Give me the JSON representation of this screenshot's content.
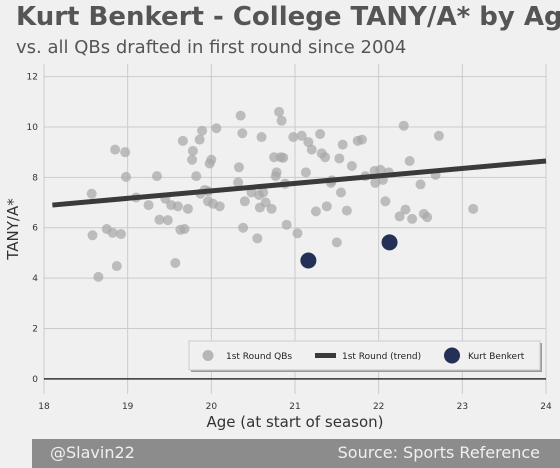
{
  "title": "Kurt Benkert - College TANY/A* by Age",
  "subtitle": "vs. all QBs drafted in first round since 2004",
  "footer": {
    "left": "@Slavin22",
    "right": "Source: Sports Reference"
  },
  "colors": {
    "background": "#f0f0f0",
    "grid": "#cbcbcb",
    "scatter": "#a8a8a8",
    "trend": "#3a3a3a",
    "highlight": "#243056",
    "footer": "#8c8c8c"
  },
  "chart_data": {
    "type": "scatter",
    "xlabel": "Age (at start of season)",
    "ylabel": "TANY/A*",
    "xlim": [
      18,
      24
    ],
    "ylim": [
      -0.6,
      12.5
    ],
    "xticks": [
      18,
      19,
      20,
      21,
      22,
      23,
      24
    ],
    "yticks": [
      0,
      2,
      4,
      6,
      8,
      10,
      12
    ],
    "grid": true,
    "legend": {
      "placement": "lower-right",
      "entries": [
        "1st Round QBs",
        "1st Round (trend)",
        "Kurt Benkert"
      ]
    },
    "series": [
      {
        "name": "1st Round QBs",
        "points": [
          [
            18.57,
            7.35
          ],
          [
            18.58,
            5.7
          ],
          [
            18.65,
            4.05
          ],
          [
            18.75,
            5.95
          ],
          [
            18.82,
            5.8
          ],
          [
            18.85,
            9.1
          ],
          [
            18.87,
            4.48
          ],
          [
            18.92,
            5.75
          ],
          [
            18.97,
            9.0
          ],
          [
            18.98,
            8.02
          ],
          [
            19.1,
            7.2
          ],
          [
            19.25,
            6.9
          ],
          [
            19.35,
            8.05
          ],
          [
            19.38,
            6.32
          ],
          [
            19.45,
            7.15
          ],
          [
            19.48,
            6.3
          ],
          [
            19.52,
            6.9
          ],
          [
            19.57,
            4.6
          ],
          [
            19.6,
            6.85
          ],
          [
            19.63,
            5.92
          ],
          [
            19.66,
            9.45
          ],
          [
            19.68,
            5.95
          ],
          [
            19.72,
            6.75
          ],
          [
            19.77,
            8.7
          ],
          [
            19.78,
            9.05
          ],
          [
            19.82,
            8.05
          ],
          [
            19.86,
            9.5
          ],
          [
            19.87,
            7.35
          ],
          [
            19.89,
            9.85
          ],
          [
            19.92,
            7.5
          ],
          [
            19.96,
            7.05
          ],
          [
            19.98,
            8.55
          ],
          [
            20.0,
            8.7
          ],
          [
            20.02,
            6.95
          ],
          [
            20.06,
            9.95
          ],
          [
            20.1,
            6.85
          ],
          [
            20.32,
            7.8
          ],
          [
            20.33,
            8.4
          ],
          [
            20.35,
            10.45
          ],
          [
            20.37,
            9.75
          ],
          [
            20.38,
            6.0
          ],
          [
            20.4,
            7.05
          ],
          [
            20.55,
            5.58
          ],
          [
            20.57,
            7.3
          ],
          [
            20.58,
            6.8
          ],
          [
            20.6,
            9.6
          ],
          [
            20.62,
            7.4
          ],
          [
            20.65,
            7.0
          ],
          [
            20.72,
            6.75
          ],
          [
            20.75,
            8.8
          ],
          [
            20.77,
            8.05
          ],
          [
            20.78,
            8.2
          ],
          [
            20.81,
            10.6
          ],
          [
            20.83,
            8.8
          ],
          [
            20.84,
            10.25
          ],
          [
            20.86,
            8.78
          ],
          [
            20.88,
            7.75
          ],
          [
            20.9,
            6.12
          ],
          [
            20.98,
            9.6
          ],
          [
            21.08,
            9.65
          ],
          [
            21.03,
            5.78
          ],
          [
            21.13,
            8.2
          ],
          [
            21.16,
            9.4
          ],
          [
            21.2,
            9.1
          ],
          [
            21.25,
            6.65
          ],
          [
            21.3,
            9.72
          ],
          [
            21.32,
            8.95
          ],
          [
            21.36,
            8.8
          ],
          [
            21.38,
            6.85
          ],
          [
            21.43,
            7.78
          ],
          [
            21.5,
            5.42
          ],
          [
            21.53,
            8.75
          ],
          [
            21.55,
            7.4
          ],
          [
            21.57,
            9.3
          ],
          [
            21.62,
            6.68
          ],
          [
            21.68,
            8.45
          ],
          [
            21.75,
            9.45
          ],
          [
            21.8,
            9.5
          ],
          [
            21.84,
            8.05
          ],
          [
            21.95,
            8.25
          ],
          [
            22.02,
            8.3
          ],
          [
            22.05,
            7.9
          ],
          [
            22.08,
            7.05
          ],
          [
            22.25,
            6.45
          ],
          [
            22.3,
            10.05
          ],
          [
            22.32,
            6.72
          ],
          [
            22.37,
            8.65
          ],
          [
            22.4,
            6.35
          ],
          [
            22.5,
            7.72
          ],
          [
            22.54,
            6.55
          ],
          [
            22.58,
            6.42
          ],
          [
            22.68,
            8.1
          ],
          [
            22.72,
            9.65
          ],
          [
            23.13,
            6.75
          ],
          [
            22.12,
            8.2
          ],
          [
            21.96,
            7.78
          ],
          [
            21.44,
            7.88
          ],
          [
            20.48,
            7.4
          ],
          [
            19.96,
            7.45
          ]
        ]
      },
      {
        "name": "1st Round (trend)",
        "line": [
          [
            18.1,
            6.9
          ],
          [
            24.0,
            8.65
          ]
        ]
      },
      {
        "name": "Kurt Benkert",
        "points": [
          [
            21.16,
            4.7
          ],
          [
            22.13,
            5.42
          ]
        ]
      }
    ]
  }
}
